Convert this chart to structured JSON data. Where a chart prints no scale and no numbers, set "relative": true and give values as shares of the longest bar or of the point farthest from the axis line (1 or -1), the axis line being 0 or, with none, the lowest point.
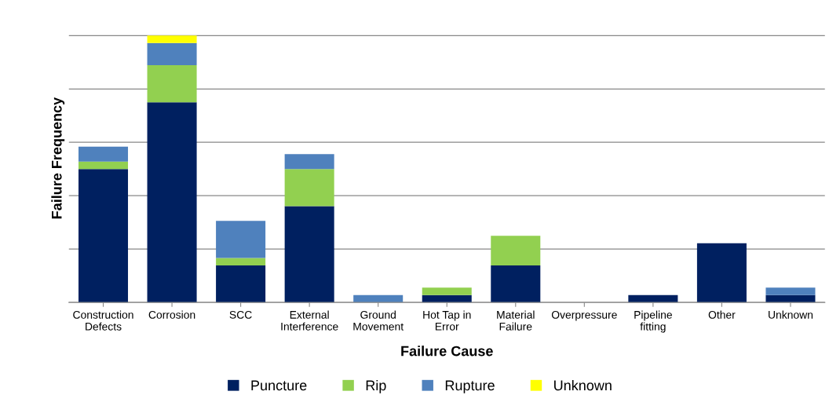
{
  "chart_data": {
    "type": "bar",
    "stacked": true,
    "relative": true,
    "xlabel": "Failure Cause",
    "ylabel": "Failure Frequency",
    "categories": [
      "Construction Defects",
      "Corrosion",
      "SCC",
      "External Interference",
      "Ground Movement",
      "Hot Tap in Error",
      "Material Failure",
      "Overpressure",
      "Pipeline fitting",
      "Other",
      "Unknown"
    ],
    "series": [
      {
        "name": "Puncture",
        "color": "#002060",
        "values": [
          0.5,
          0.75,
          0.139,
          0.361,
          0,
          0.028,
          0.139,
          0,
          0.028,
          0.222,
          0.028
        ]
      },
      {
        "name": "Rip",
        "color": "#92d050",
        "values": [
          0.028,
          0.139,
          0.028,
          0.139,
          0,
          0.028,
          0.111,
          0,
          0,
          0,
          0
        ]
      },
      {
        "name": "Rupture",
        "color": "#4f81bd",
        "values": [
          0.056,
          0.083,
          0.139,
          0.056,
          0.028,
          0,
          0,
          0,
          0,
          0,
          0.028
        ]
      },
      {
        "name": "Unknown",
        "color": "#ffff00",
        "values": [
          0,
          0.028,
          0,
          0,
          0,
          0,
          0,
          0,
          0,
          0,
          0
        ]
      }
    ],
    "grid": "y",
    "legend": "bottom"
  }
}
